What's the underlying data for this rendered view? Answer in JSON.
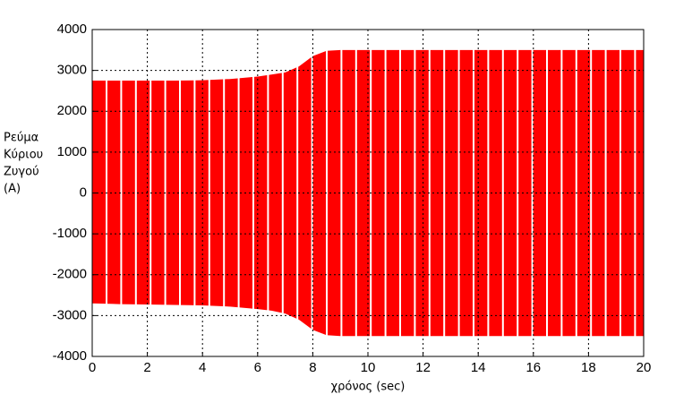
{
  "chart_data": {
    "type": "band",
    "ylabel": [
      "Ρεύμα",
      "Κύριου",
      "Ζυγού",
      "(A)"
    ],
    "xlabel": "χρόνος (sec)",
    "color": "#ff0000",
    "x": [
      0,
      1,
      2,
      3,
      4,
      5,
      6,
      6.5,
      7,
      7.5,
      8,
      8.5,
      9,
      10,
      12,
      14,
      16,
      18,
      20
    ],
    "upper": [
      2750,
      2750,
      2750,
      2750,
      2760,
      2790,
      2850,
      2900,
      2950,
      3100,
      3350,
      3480,
      3500,
      3500,
      3500,
      3500,
      3500,
      3500,
      3500
    ],
    "lower": [
      -2700,
      -2720,
      -2730,
      -2740,
      -2750,
      -2780,
      -2840,
      -2880,
      -2950,
      -3100,
      -3350,
      -3480,
      -3500,
      -3500,
      -3500,
      -3500,
      -3500,
      -3500,
      -3500
    ],
    "xlim": [
      0,
      20
    ],
    "ylim": [
      -4000,
      4000
    ],
    "xticks": [
      0,
      2,
      4,
      6,
      8,
      10,
      12,
      14,
      16,
      18,
      20
    ],
    "yticks": [
      -4000,
      -3000,
      -2000,
      -1000,
      0,
      1000,
      2000,
      3000,
      4000
    ],
    "grid": true
  }
}
